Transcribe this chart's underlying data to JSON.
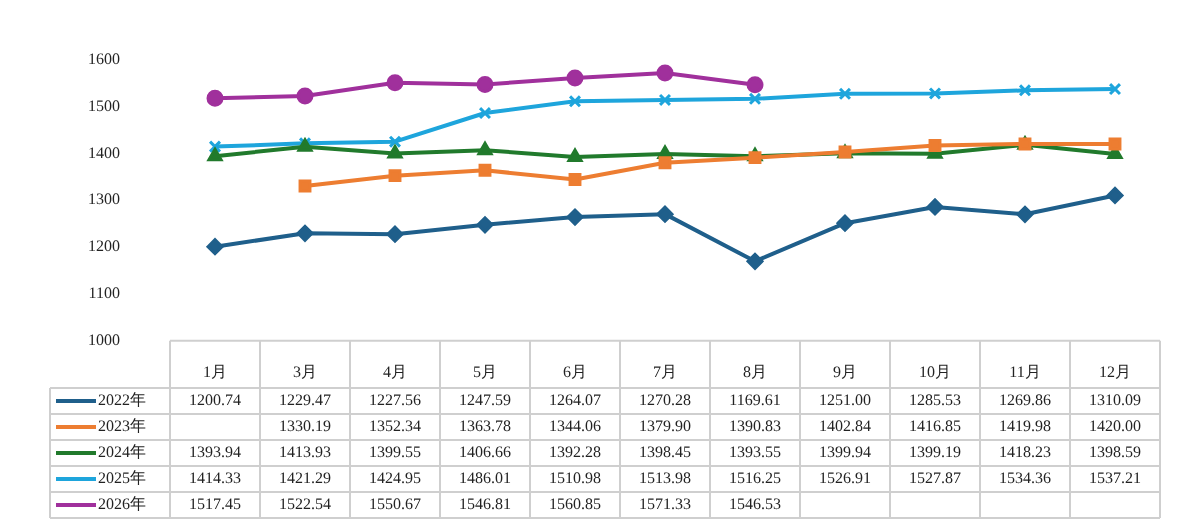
{
  "chart_data": {
    "type": "line",
    "categories": [
      "1月",
      "3月",
      "4月",
      "5月",
      "6月",
      "7月",
      "8月",
      "9月",
      "10月",
      "11月",
      "12月"
    ],
    "ylim": [
      1000,
      1600
    ],
    "yticks": [
      1000,
      1100,
      1200,
      1300,
      1400,
      1500,
      1600
    ],
    "grid": false,
    "legend": "bottom",
    "series": [
      {
        "name": "2022年",
        "color": "#1f5f8b",
        "marker": "diamond",
        "values": [
          1200.74,
          1229.47,
          1227.56,
          1247.59,
          1264.07,
          1270.28,
          1169.61,
          1251.0,
          1285.53,
          1269.86,
          1310.09
        ],
        "value_labels": [
          "1200.74",
          "1229.47",
          "1227.56",
          "1247.59",
          "1264.07",
          "1270.28",
          "1169.61",
          "1251.00",
          "1285.53",
          "1269.86",
          "1310.09"
        ]
      },
      {
        "name": "2023年",
        "color": "#ed7d31",
        "marker": "square",
        "values": [
          null,
          1330.19,
          1352.34,
          1363.78,
          1344.06,
          1379.9,
          1390.83,
          1402.84,
          1416.85,
          1419.98,
          1420.0
        ],
        "value_labels": [
          null,
          "1330.19",
          "1352.34",
          "1363.78",
          "1344.06",
          "1379.90",
          "1390.83",
          "1402.84",
          "1416.85",
          "1419.98",
          "1420.00"
        ]
      },
      {
        "name": "2024年",
        "color": "#217a2c",
        "marker": "triangle",
        "values": [
          1393.94,
          1413.93,
          1399.55,
          1406.66,
          1392.28,
          1398.45,
          1393.55,
          1399.94,
          1399.19,
          1418.23,
          1398.59
        ],
        "value_labels": [
          "1393.94",
          "1413.93",
          "1399.55",
          "1406.66",
          "1392.28",
          "1398.45",
          "1393.55",
          "1399.94",
          "1399.19",
          "1418.23",
          "1398.59"
        ]
      },
      {
        "name": "2025年",
        "color": "#1ea5dc",
        "marker": "cross",
        "values": [
          1414.33,
          1421.29,
          1424.95,
          1486.01,
          1510.98,
          1513.98,
          1516.25,
          1526.91,
          1527.87,
          1534.36,
          1537.21
        ],
        "value_labels": [
          "1414.33",
          "1421.29",
          "1424.95",
          "1486.01",
          "1510.98",
          "1513.98",
          "1516.25",
          "1526.91",
          "1527.87",
          "1534.36",
          "1537.21"
        ]
      },
      {
        "name": "2026年",
        "color": "#a0309c",
        "marker": "circle",
        "values": [
          1517.45,
          1522.54,
          1550.67,
          1546.81,
          1560.85,
          1571.33,
          1546.53,
          null,
          null,
          null,
          null
        ],
        "value_labels": [
          "1517.45",
          "1522.54",
          "1550.67",
          "1546.81",
          "1560.85",
          "1571.33",
          "1546.53",
          null,
          null,
          null,
          null
        ]
      }
    ]
  }
}
